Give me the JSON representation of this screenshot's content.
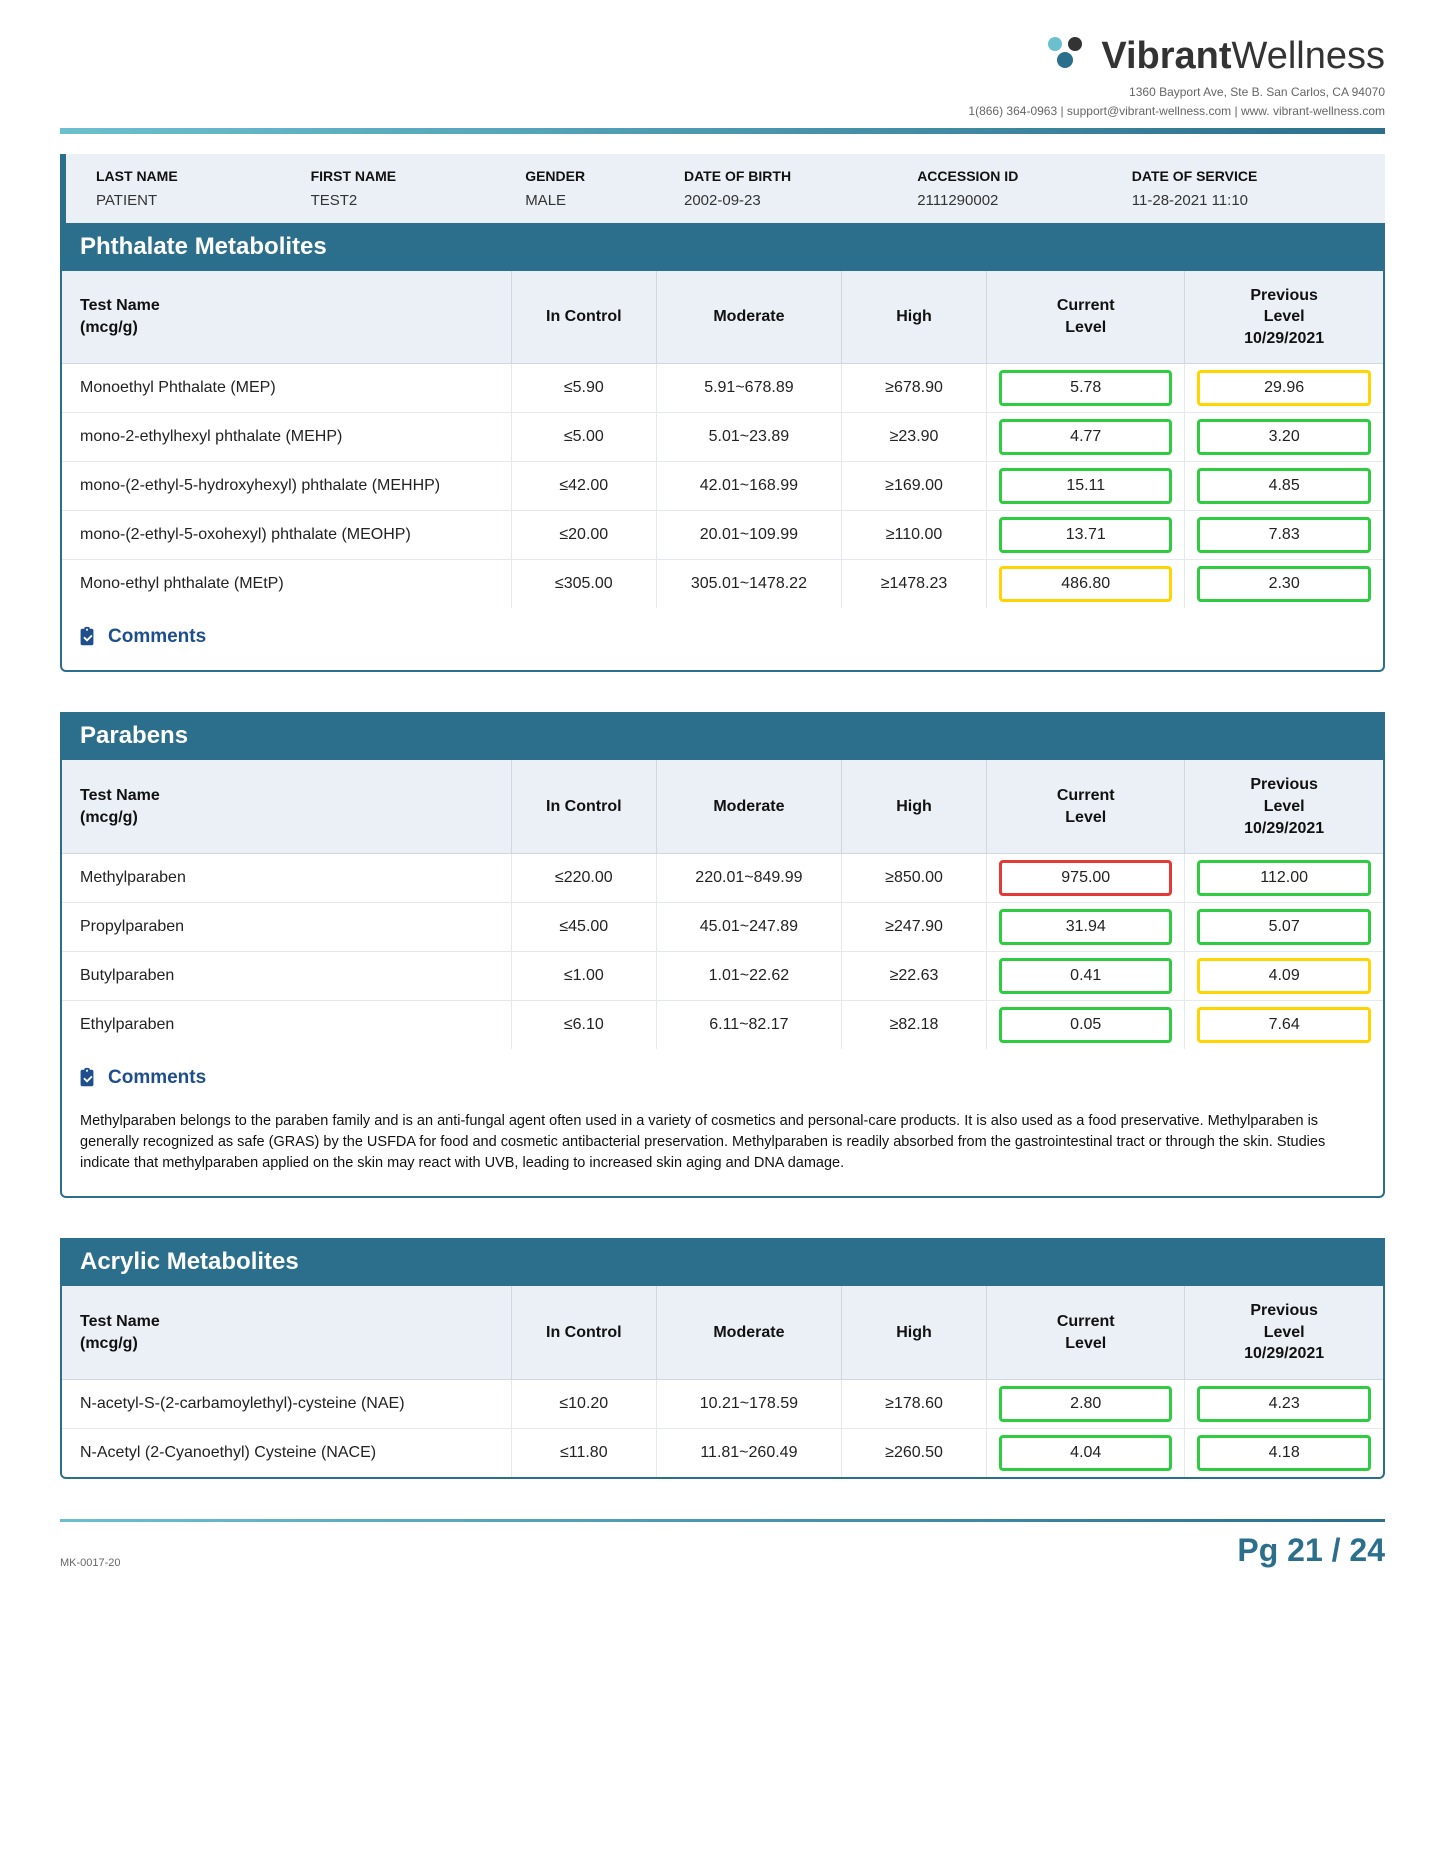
{
  "brand": {
    "name_bold": "Vibrant",
    "name_light": "Wellness",
    "address": "1360 Bayport Ave, Ste B. San Carlos, CA 94070",
    "contact": "1(866) 364-0963 | support@vibrant-wellness.com | www. vibrant-wellness.com",
    "logo_colors": {
      "c1": "#6bbfcf",
      "c2": "#2b6f8c",
      "c3": "#333333"
    }
  },
  "patient": {
    "labels": {
      "lastname": "LAST NAME",
      "firstname": "FIRST NAME",
      "gender": "GENDER",
      "dob": "DATE OF BIRTH",
      "accession": "ACCESSION ID",
      "dos": "DATE OF SERVICE"
    },
    "values": {
      "lastname": "PATIENT",
      "firstname": "TEST2",
      "gender": "MALE",
      "dob": "2002-09-23",
      "accession": "2111290002",
      "dos": "11-28-2021 11:10"
    }
  },
  "columns": {
    "testname_l1": "Test Name",
    "testname_l2": "(mcg/g)",
    "incontrol": "In Control",
    "moderate": "Moderate",
    "high": "High",
    "current_l1": "Current",
    "current_l2": "Level",
    "prev_l1": "Previous",
    "prev_l2": "Level",
    "prev_l3": "10/29/2021"
  },
  "comments_label": "Comments",
  "level_colors": {
    "green": "#2ecc40",
    "yellow": "#ffd400",
    "red": "#e53935"
  },
  "sections": [
    {
      "title": "Phthalate Metabolites",
      "rows": [
        {
          "name": "Monoethyl Phthalate (MEP)",
          "incontrol": "≤5.90",
          "moderate": "5.91~678.89",
          "high": "≥678.90",
          "current": {
            "v": "5.78",
            "c": "green"
          },
          "prev": {
            "v": "29.96",
            "c": "yellow"
          }
        },
        {
          "name": "mono-2-ethylhexyl phthalate (MEHP)",
          "incontrol": "≤5.00",
          "moderate": "5.01~23.89",
          "high": "≥23.90",
          "current": {
            "v": "4.77",
            "c": "green"
          },
          "prev": {
            "v": "3.20",
            "c": "green"
          }
        },
        {
          "name": "mono-(2-ethyl-5-hydroxyhexyl) phthalate (MEHHP)",
          "incontrol": "≤42.00",
          "moderate": "42.01~168.99",
          "high": "≥169.00",
          "current": {
            "v": "15.11",
            "c": "green"
          },
          "prev": {
            "v": "4.85",
            "c": "green"
          }
        },
        {
          "name": "mono-(2-ethyl-5-oxohexyl) phthalate (MEOHP)",
          "incontrol": "≤20.00",
          "moderate": "20.01~109.99",
          "high": "≥110.00",
          "current": {
            "v": "13.71",
            "c": "green"
          },
          "prev": {
            "v": "7.83",
            "c": "green"
          }
        },
        {
          "name": "Mono-ethyl phthalate (MEtP)",
          "incontrol": "≤305.00",
          "moderate": "305.01~1478.22",
          "high": "≥1478.23",
          "current": {
            "v": "486.80",
            "c": "yellow"
          },
          "prev": {
            "v": "2.30",
            "c": "green"
          }
        }
      ],
      "comment_text": ""
    },
    {
      "title": "Parabens",
      "rows": [
        {
          "name": "Methylparaben",
          "incontrol": "≤220.00",
          "moderate": "220.01~849.99",
          "high": "≥850.00",
          "current": {
            "v": "975.00",
            "c": "red"
          },
          "prev": {
            "v": "112.00",
            "c": "green"
          }
        },
        {
          "name": "Propylparaben",
          "incontrol": "≤45.00",
          "moderate": "45.01~247.89",
          "high": "≥247.90",
          "current": {
            "v": "31.94",
            "c": "green"
          },
          "prev": {
            "v": "5.07",
            "c": "green"
          }
        },
        {
          "name": "Butylparaben",
          "incontrol": "≤1.00",
          "moderate": "1.01~22.62",
          "high": "≥22.63",
          "current": {
            "v": "0.41",
            "c": "green"
          },
          "prev": {
            "v": "4.09",
            "c": "yellow"
          }
        },
        {
          "name": "Ethylparaben",
          "incontrol": "≤6.10",
          "moderate": "6.11~82.17",
          "high": "≥82.18",
          "current": {
            "v": "0.05",
            "c": "green"
          },
          "prev": {
            "v": "7.64",
            "c": "yellow"
          }
        }
      ],
      "comment_text": "Methylparaben belongs to the paraben family and is an anti-fungal agent often used in a variety of cosmetics and personal-care products. It is also used as a food preservative. Methylparaben is generally recognized as safe (GRAS) by the USFDA for food and cosmetic antibacterial preservation. Methylparaben is readily absorbed from the gastrointestinal tract or through the skin. Studies indicate that methylparaben applied on the skin may react with UVB, leading to increased skin aging and DNA damage."
    },
    {
      "title": "Acrylic Metabolites",
      "rows": [
        {
          "name": "N-acetyl-S-(2-carbamoylethyl)-cysteine (NAE)",
          "incontrol": "≤10.20",
          "moderate": "10.21~178.59",
          "high": "≥178.60",
          "current": {
            "v": "2.80",
            "c": "green"
          },
          "prev": {
            "v": "4.23",
            "c": "green"
          }
        },
        {
          "name": "N-Acetyl (2-Cyanoethyl) Cysteine (NACE)",
          "incontrol": "≤11.80",
          "moderate": "11.81~260.49",
          "high": "≥260.50",
          "current": {
            "v": "4.04",
            "c": "green"
          },
          "prev": {
            "v": "4.18",
            "c": "green"
          }
        }
      ],
      "no_comments": true
    }
  ],
  "footer": {
    "doc_code": "MK-0017-20",
    "page": "Pg 21 / 24"
  },
  "col_widths_pct": [
    34,
    11,
    14,
    11,
    15,
    15
  ]
}
